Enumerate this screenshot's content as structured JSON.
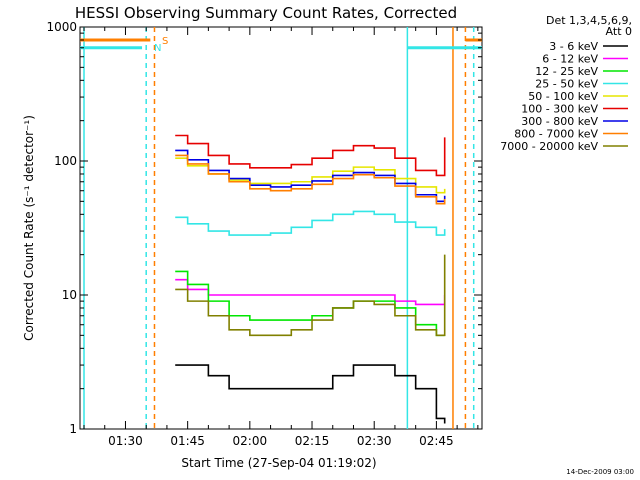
{
  "chart_data": {
    "type": "line",
    "title": "HESSI Observing Summary Count Rates, Corrected",
    "ylabel": "Corrected Count Rate (s⁻¹ detector⁻¹)",
    "xlabel": "Start Time (27-Sep-04 01:19:02)",
    "yscale": "log",
    "ylim": [
      1,
      1000
    ],
    "xlim": [
      "01:19:02",
      "02:56:00"
    ],
    "x_ticks": [
      "01:30",
      "01:45",
      "02:00",
      "02:15",
      "02:30",
      "02:45"
    ],
    "y_ticks": [
      "1",
      "10",
      "100",
      "1000"
    ],
    "legend_position": "top-right",
    "legend_header": [
      "Det 1,3,4,5,6,9,",
      "Att 0"
    ],
    "footer_date": "14-Dec-2009 03:00",
    "flag_labels": [
      {
        "label": "S",
        "color": "#ff7f00"
      },
      {
        "label": "N",
        "color": "#33e6e6"
      }
    ],
    "x": [
      "01:42",
      "01:45",
      "01:50",
      "01:55",
      "02:00",
      "02:05",
      "02:10",
      "02:15",
      "02:20",
      "02:25",
      "02:30",
      "02:35",
      "02:40",
      "02:45",
      "02:47"
    ],
    "series": [
      {
        "name": "3 - 6 keV",
        "color": "#000000",
        "values": [
          3,
          3,
          2.5,
          2,
          2,
          2,
          2,
          2,
          2.5,
          3,
          3,
          2.5,
          2,
          1.2,
          1.1
        ]
      },
      {
        "name": "6 - 12 keV",
        "color": "#ff00ff",
        "values": [
          13,
          11,
          10,
          10,
          10,
          10,
          10,
          10,
          10,
          10,
          10,
          9,
          8.5,
          8.5,
          10
        ]
      },
      {
        "name": "12 - 25 keV",
        "color": "#00e600",
        "values": [
          15,
          12,
          9,
          7,
          6.5,
          6.5,
          6.5,
          7,
          8,
          9,
          9,
          8,
          6,
          5,
          5
        ]
      },
      {
        "name": "25 - 50 keV",
        "color": "#33e6e6",
        "values": [
          38,
          34,
          30,
          28,
          28,
          29,
          32,
          36,
          40,
          42,
          40,
          35,
          32,
          28,
          31
        ]
      },
      {
        "name": "50 - 100 keV",
        "color": "#e6e600",
        "values": [
          105,
          92,
          80,
          72,
          68,
          68,
          70,
          76,
          84,
          90,
          86,
          74,
          64,
          58,
          62
        ]
      },
      {
        "name": "100 - 300 keV",
        "color": "#e60000",
        "values": [
          155,
          135,
          110,
          95,
          89,
          89,
          94,
          105,
          120,
          130,
          125,
          105,
          85,
          78,
          150
        ]
      },
      {
        "name": "300 - 800 keV",
        "color": "#0000e6",
        "values": [
          120,
          102,
          85,
          74,
          66,
          64,
          66,
          71,
          78,
          82,
          78,
          68,
          56,
          50,
          55
        ]
      },
      {
        "name": "800 - 7000 keV",
        "color": "#ff7f00",
        "values": [
          110,
          95,
          80,
          70,
          62,
          60,
          62,
          67,
          74,
          79,
          75,
          65,
          54,
          48,
          52
        ]
      },
      {
        "name": "7000 - 20000 keV",
        "color": "#808000",
        "values": [
          11,
          9,
          7,
          5.5,
          5,
          5,
          5.5,
          6.5,
          8,
          9,
          8.5,
          7,
          5.5,
          5,
          20
        ]
      }
    ],
    "orange_bar": {
      "level": 800,
      "segments": [
        [
          "01:19:02",
          "01:36"
        ],
        [
          "02:52",
          "02:56"
        ]
      ]
    },
    "cyan_bar": {
      "level": 700,
      "segments": [
        [
          "01:19:02",
          "01:34"
        ],
        [
          "02:38",
          "02:56"
        ]
      ]
    },
    "vertical_markers": [
      {
        "time": "01:35",
        "color": "#33e6e6",
        "style": "dashed"
      },
      {
        "time": "01:37",
        "color": "#ff7f00",
        "style": "dashed"
      },
      {
        "time": "02:38",
        "color": "#33e6e6",
        "style": "solid"
      },
      {
        "time": "02:49",
        "color": "#ff7f00",
        "style": "solid"
      },
      {
        "time": "02:52",
        "color": "#ff7f00",
        "style": "dashed"
      },
      {
        "time": "02:54",
        "color": "#33e6e6",
        "style": "dashed"
      },
      {
        "time": "01:20",
        "color": "#33e6e6",
        "style": "solid"
      }
    ]
  }
}
